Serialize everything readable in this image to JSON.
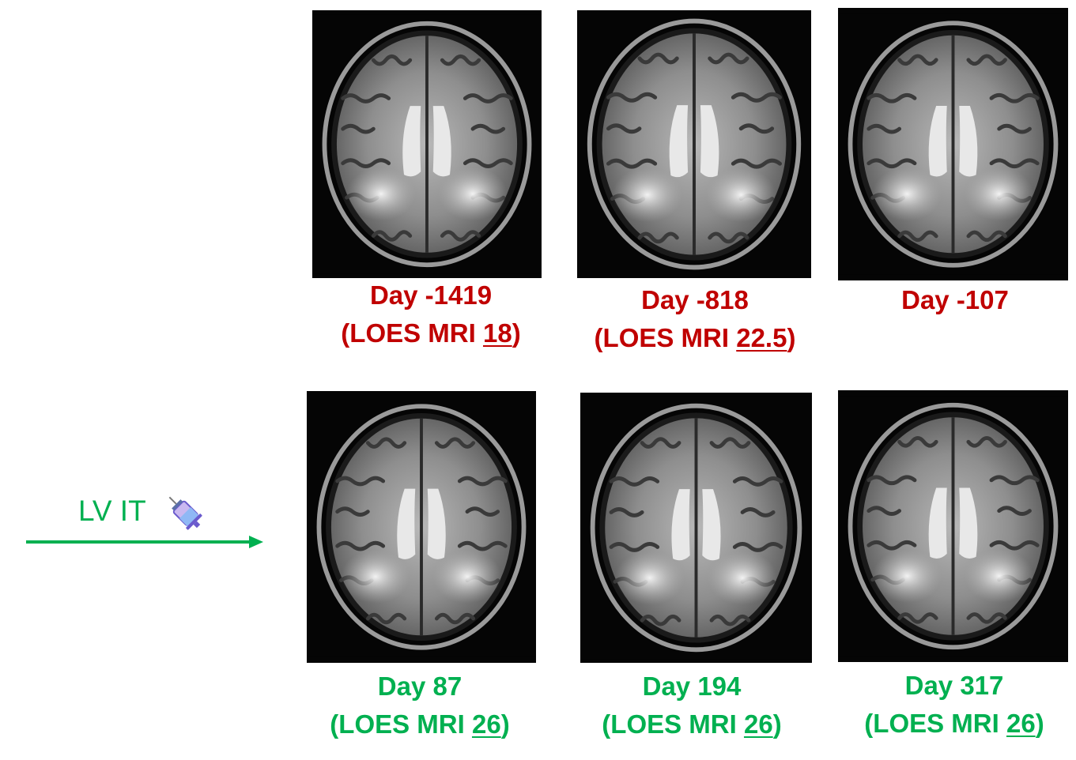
{
  "colors": {
    "pre_treatment": "#C00000",
    "post_treatment": "#00B050",
    "background": "#FFFFFF"
  },
  "treatment": {
    "label": "LV IT",
    "icon": "syringe-icon"
  },
  "scans": [
    {
      "id": "scan-1",
      "day": "Day -1419",
      "score_prefix": "(LOES MRI ",
      "score": "18",
      "score_suffix": ")",
      "phase": "pre"
    },
    {
      "id": "scan-2",
      "day": "Day -818",
      "score_prefix": "(LOES MRI ",
      "score": "22.5",
      "score_suffix": ")",
      "phase": "pre"
    },
    {
      "id": "scan-3",
      "day": "Day -107",
      "phase": "pre"
    },
    {
      "id": "scan-4",
      "day": "Day 87",
      "score_prefix": "(LOES MRI ",
      "score": "26",
      "score_suffix": ")",
      "phase": "post"
    },
    {
      "id": "scan-5",
      "day": "Day 194",
      "score_prefix": "(LOES MRI ",
      "score": "26",
      "score_suffix": ")",
      "phase": "post"
    },
    {
      "id": "scan-6",
      "day": "Day 317",
      "score_prefix": "(LOES MRI ",
      "score": "26",
      "score_suffix": ")",
      "phase": "post"
    }
  ]
}
